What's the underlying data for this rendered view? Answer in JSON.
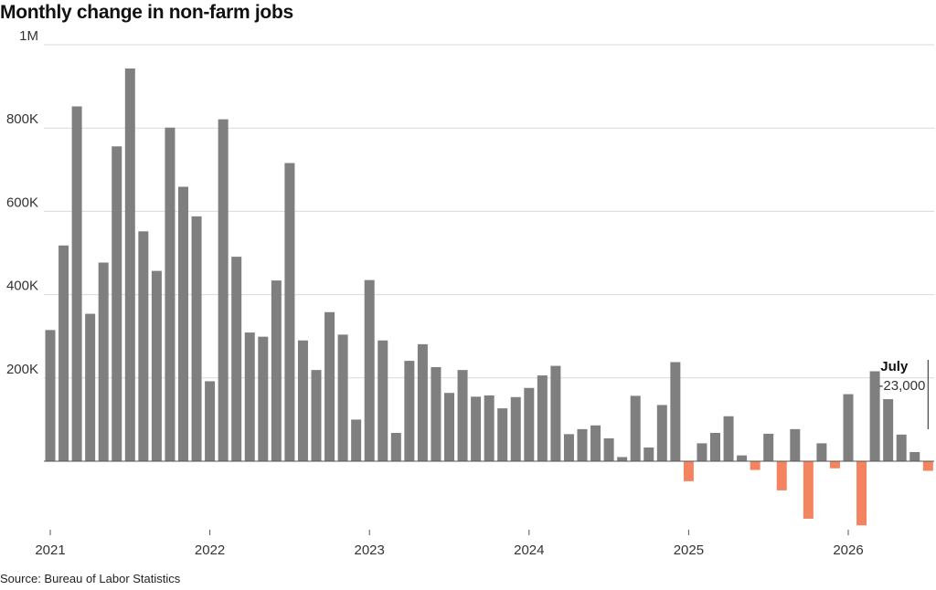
{
  "title": "Monthly change in non-farm jobs",
  "source": "Source: Bureau of Labor Statistics",
  "annotation": {
    "month": "July",
    "value": "-23,000"
  },
  "colors": {
    "positive": "#7f7f7f",
    "negative": "#f4845f",
    "grid": "#d9d9d9",
    "baseline": "#555555"
  },
  "chart_data": {
    "type": "bar",
    "title": "Monthly change in non-farm jobs",
    "xlabel": "",
    "ylabel": "",
    "ylim": [
      -160000,
      1000000
    ],
    "yticks": [
      {
        "value": 1000000,
        "label": "1M"
      },
      {
        "value": 800000,
        "label": "800K"
      },
      {
        "value": 600000,
        "label": "600K"
      },
      {
        "value": 400000,
        "label": "400K"
      },
      {
        "value": 200000,
        "label": "200K"
      }
    ],
    "xticks": [
      {
        "index": 0,
        "label": "2021"
      },
      {
        "index": 12,
        "label": "2022"
      },
      {
        "index": 24,
        "label": "2023"
      },
      {
        "index": 36,
        "label": "2024"
      },
      {
        "index": 48,
        "label": "2025"
      },
      {
        "index": 60,
        "label": "2026"
      }
    ],
    "grid": true,
    "values": [
      315000,
      518000,
      852000,
      354000,
      477000,
      756000,
      943000,
      552000,
      457000,
      801000,
      659000,
      588000,
      192000,
      821000,
      491000,
      309000,
      299000,
      434000,
      716000,
      290000,
      219000,
      358000,
      304000,
      100000,
      435000,
      290000,
      68000,
      241000,
      281000,
      226000,
      164000,
      219000,
      155000,
      158000,
      127000,
      154000,
      176000,
      206000,
      229000,
      65000,
      77000,
      86000,
      55000,
      10000,
      157000,
      33000,
      135000,
      238000,
      -48000,
      43000,
      68000,
      108000,
      14000,
      -21000,
      66000,
      -70000,
      77000,
      -138000,
      43000,
      -17000,
      161000,
      -154000,
      216000,
      149000,
      64000,
      22000,
      -23000
    ]
  }
}
